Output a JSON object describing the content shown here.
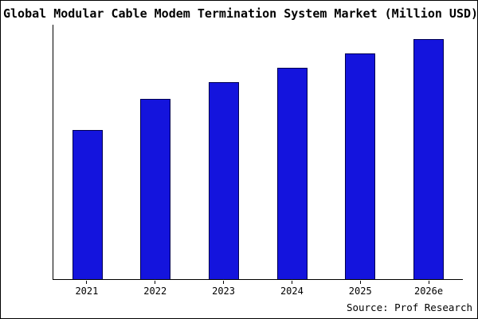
{
  "title": "Global Modular Cable Modem Termination System Market (Million USD)",
  "source": "Source: Prof Research",
  "colors": {
    "bar_fill": "#1414dd",
    "bar_edge": "#000050",
    "axis": "#000000",
    "background": "#ffffff",
    "frame": "#000000"
  },
  "chart_data": {
    "type": "bar",
    "title": "Global Modular Cable Modem Termination System Market (Million USD)",
    "categories": [
      "2021",
      "2022",
      "2023",
      "2024",
      "2025",
      "2026e"
    ],
    "values": [
      62,
      75,
      82,
      88,
      94,
      100
    ],
    "xlabel": "",
    "ylabel": "",
    "ylim": [
      0,
      106
    ],
    "grid": false,
    "legend": false,
    "bar_color": "#1414dd",
    "annotation": "Source: Prof Research"
  }
}
